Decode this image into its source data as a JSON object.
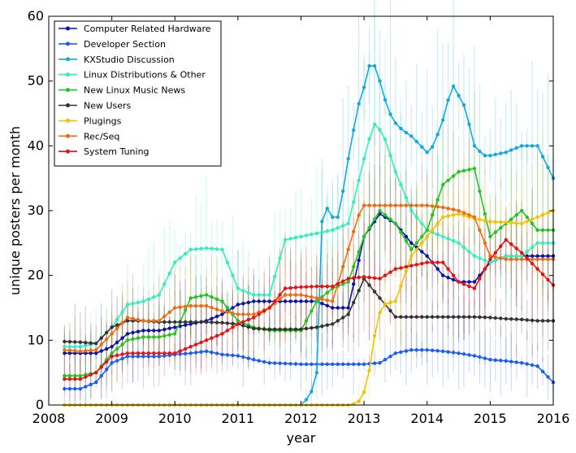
{
  "chart_data": {
    "type": "line",
    "xlabel": "year",
    "ylabel": "unique posters per month",
    "xlim": [
      2008,
      2016
    ],
    "ylim": [
      0,
      60
    ],
    "xticks": [
      "2008",
      "2009",
      "2010",
      "2011",
      "2012",
      "2013",
      "2014",
      "2015",
      "2016"
    ],
    "yticks": [
      "0",
      "10",
      "20",
      "30",
      "40",
      "50",
      "60"
    ],
    "grid": false,
    "legend_position": "top-left",
    "series": [
      {
        "name": "Computer Related Hardware",
        "color": "#0a14a8",
        "x": [
          2008.25,
          2008.5,
          2008.75,
          2009.0,
          2009.25,
          2009.5,
          2009.75,
          2010.0,
          2010.25,
          2010.5,
          2010.75,
          2011.0,
          2011.25,
          2011.5,
          2011.75,
          2012.0,
          2012.25,
          2012.5,
          2012.75,
          2013.0,
          2013.25,
          2013.5,
          2013.75,
          2014.0,
          2014.25,
          2014.5,
          2014.75,
          2015.0,
          2015.25,
          2015.5,
          2015.75,
          2016.0
        ],
        "y": [
          8,
          8,
          8,
          9,
          11,
          11.5,
          11.5,
          12,
          12.5,
          13,
          14,
          15.5,
          16,
          16,
          16,
          16,
          16,
          15,
          15,
          26,
          29.5,
          28,
          25,
          23,
          20,
          19,
          19,
          22,
          23,
          23,
          23,
          23
        ]
      },
      {
        "name": "Developer Section",
        "color": "#1a5ef0",
        "x": [
          2008.25,
          2008.5,
          2008.75,
          2009.0,
          2009.25,
          2009.5,
          2009.75,
          2010.0,
          2010.25,
          2010.5,
          2010.75,
          2011.0,
          2011.25,
          2011.5,
          2011.75,
          2012.0,
          2012.25,
          2012.5,
          2012.75,
          2013.0,
          2013.25,
          2013.5,
          2013.75,
          2014.0,
          2014.25,
          2014.5,
          2014.75,
          2015.0,
          2015.25,
          2015.5,
          2015.75,
          2016.0
        ],
        "y": [
          2.5,
          2.5,
          3.5,
          6.5,
          7.5,
          7.5,
          7.5,
          7.8,
          8,
          8.3,
          7.8,
          7.6,
          7,
          6.5,
          6.4,
          6.3,
          6.3,
          6.3,
          6.3,
          6.3,
          6.5,
          8,
          8.5,
          8.5,
          8.3,
          8,
          7.6,
          7,
          6.8,
          6.5,
          6,
          3.5
        ]
      },
      {
        "name": "KXStudio Discussion",
        "color": "#12a8e0",
        "x": [
          2008.25,
          2011.75,
          2012.0,
          2012.15,
          2012.25,
          2012.35,
          2012.45,
          2012.6,
          2012.75,
          2012.9,
          2013.0,
          2013.1,
          2013.2,
          2013.3,
          2013.45,
          2013.6,
          2013.75,
          2013.9,
          2014.0,
          2014.1,
          2014.25,
          2014.4,
          2014.6,
          2014.75,
          2014.9,
          2015.0,
          2015.25,
          2015.5,
          2015.75,
          2016.0
        ],
        "y": [
          0,
          0,
          0,
          1.5,
          5,
          33,
          29,
          29,
          38,
          46,
          49,
          53,
          52,
          48,
          44,
          42.5,
          41.5,
          40,
          39,
          40,
          44,
          49.5,
          46,
          40,
          38.5,
          38.5,
          39,
          40,
          40,
          35
        ]
      },
      {
        "name": "Linux Distributions & Other",
        "color": "#2ef0b8",
        "x": [
          2008.25,
          2008.5,
          2008.75,
          2009.0,
          2009.25,
          2009.5,
          2009.75,
          2010.0,
          2010.25,
          2010.5,
          2010.75,
          2011.0,
          2011.25,
          2011.5,
          2011.75,
          2012.0,
          2012.25,
          2012.5,
          2012.75,
          2013.0,
          2013.15,
          2013.3,
          2013.5,
          2013.75,
          2014.0,
          2014.25,
          2014.5,
          2014.75,
          2015.0,
          2015.25,
          2015.5,
          2015.75,
          2016.0
        ],
        "y": [
          9,
          9,
          9.5,
          12,
          15.5,
          16,
          17,
          22,
          24,
          24.2,
          24,
          18,
          17,
          17,
          25.5,
          26,
          26.5,
          27,
          28,
          38,
          43.5,
          42,
          36,
          30,
          27,
          26,
          25,
          23,
          22,
          23,
          23,
          25,
          25
        ]
      },
      {
        "name": "New Linux Music News",
        "color": "#22c422",
        "x": [
          2008.25,
          2008.5,
          2008.75,
          2009.0,
          2009.25,
          2009.5,
          2009.75,
          2010.0,
          2010.25,
          2010.5,
          2010.75,
          2011.0,
          2011.25,
          2011.5,
          2011.75,
          2012.0,
          2012.25,
          2012.5,
          2012.75,
          2013.0,
          2013.25,
          2013.5,
          2013.75,
          2014.0,
          2014.25,
          2014.5,
          2014.75,
          2015.0,
          2015.25,
          2015.5,
          2015.75,
          2016.0
        ],
        "y": [
          4.5,
          4.5,
          5,
          8,
          10,
          10.5,
          10.5,
          11,
          16.5,
          17,
          16,
          13,
          12,
          11.5,
          11.5,
          11.5,
          16,
          18,
          19,
          26,
          30,
          28,
          24,
          27,
          34,
          36,
          36.5,
          26,
          28,
          30,
          27,
          27
        ]
      },
      {
        "name": "New Users",
        "color": "#333333",
        "x": [
          2008.25,
          2008.5,
          2008.75,
          2009.0,
          2009.25,
          2009.5,
          2009.75,
          2010.0,
          2010.25,
          2010.5,
          2010.75,
          2011.0,
          2011.25,
          2011.5,
          2011.75,
          2012.0,
          2012.25,
          2012.5,
          2012.75,
          2013.0,
          2013.25,
          2013.5,
          2013.75,
          2014.0,
          2014.25,
          2014.5,
          2014.75,
          2015.0,
          2015.25,
          2015.5,
          2015.75,
          2016.0
        ],
        "y": [
          9.8,
          9.7,
          9.5,
          12,
          13,
          13,
          12.8,
          12.8,
          12.8,
          12.8,
          12.7,
          12.5,
          11.8,
          11.7,
          11.7,
          11.7,
          12,
          12.5,
          14,
          19.5,
          16.5,
          13.6,
          13.6,
          13.6,
          13.6,
          13.6,
          13.6,
          13.5,
          13.3,
          13.2,
          13,
          13
        ]
      },
      {
        "name": "Plugings",
        "color": "#f5c000",
        "x": [
          2008.25,
          2012.75,
          2012.9,
          2013.0,
          2013.1,
          2013.2,
          2013.3,
          2013.5,
          2013.75,
          2014.0,
          2014.25,
          2014.5,
          2014.75,
          2015.0,
          2015.25,
          2015.5,
          2015.75,
          2016.0
        ],
        "y": [
          0,
          0,
          0.3,
          2,
          6,
          13,
          15.5,
          16,
          23,
          26,
          29,
          29.5,
          28.8,
          28.3,
          28.2,
          28,
          29,
          30
        ]
      },
      {
        "name": "Rec/Seq",
        "color": "#f26a10",
        "x": [
          2008.25,
          2008.5,
          2008.75,
          2009.0,
          2009.25,
          2009.5,
          2009.75,
          2010.0,
          2010.25,
          2010.5,
          2010.75,
          2011.0,
          2011.25,
          2011.5,
          2011.75,
          2012.0,
          2012.25,
          2012.5,
          2012.75,
          2012.9,
          2013.0,
          2013.25,
          2013.5,
          2013.75,
          2014.0,
          2014.25,
          2014.5,
          2014.75,
          2015.0,
          2015.25,
          2015.5,
          2015.75,
          2016.0
        ],
        "y": [
          8.5,
          8.3,
          8.5,
          11,
          13.5,
          13,
          13,
          15,
          15.3,
          15.3,
          14.5,
          14,
          14,
          15,
          17,
          17,
          16.5,
          16,
          24,
          29,
          30.8,
          30.8,
          30.8,
          30.8,
          30.8,
          30.5,
          30,
          29,
          23,
          22.5,
          22.5,
          22.5,
          22.5
        ]
      },
      {
        "name": "System Tuning",
        "color": "#e81010",
        "x": [
          2008.25,
          2008.5,
          2008.75,
          2009.0,
          2009.25,
          2009.5,
          2009.75,
          2010.0,
          2010.25,
          2010.5,
          2010.75,
          2011.0,
          2011.25,
          2011.5,
          2011.75,
          2012.0,
          2012.25,
          2012.5,
          2012.75,
          2013.0,
          2013.25,
          2013.5,
          2013.75,
          2014.0,
          2014.25,
          2014.5,
          2014.75,
          2015.0,
          2015.25,
          2015.5,
          2015.75,
          2016.0
        ],
        "y": [
          4,
          4,
          5,
          7.5,
          8,
          8,
          8,
          8,
          9,
          10,
          11,
          12.5,
          13.5,
          15,
          18,
          18.2,
          18.3,
          18.3,
          19.5,
          19.8,
          19.5,
          21,
          21.5,
          22,
          22,
          19,
          18,
          22.5,
          25.5,
          23.5,
          21,
          18.5
        ]
      }
    ]
  }
}
